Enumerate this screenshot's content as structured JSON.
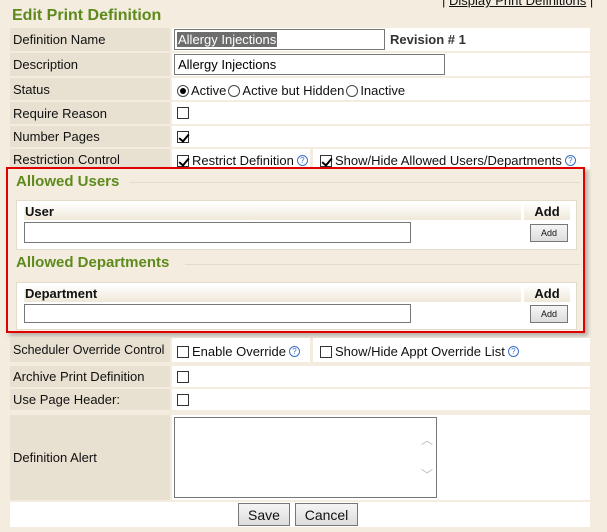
{
  "top_link": "Display Print Definitions",
  "title": "Edit Print Definition",
  "rows": {
    "definition_name": {
      "label": "Definition Name",
      "value": "Allergy Injections",
      "revision": "Revision # 1"
    },
    "description": {
      "label": "Description",
      "value": "Allergy Injections"
    },
    "status": {
      "label": "Status",
      "options": [
        "Active",
        "Active but Hidden",
        "Inactive"
      ],
      "selected": "Active"
    },
    "require_reason": {
      "label": "Require Reason",
      "checked": false
    },
    "number_pages": {
      "label": "Number Pages",
      "checked": true
    },
    "restriction_control": {
      "label": "Restriction Control",
      "restrict": "Restrict Definition",
      "restrict_checked": true,
      "show_hide": "Show/Hide Allowed Users/Departments",
      "show_hide_checked": true
    },
    "scheduler_override": {
      "label": "Scheduler Override Control",
      "enable": "Enable Override",
      "enable_checked": false,
      "show_hide": "Show/Hide Appt Override List",
      "show_hide_checked": false
    },
    "archive": {
      "label": "Archive Print Definition",
      "checked": false
    },
    "page_header": {
      "label": "Use Page Header:",
      "checked": false
    },
    "alert": {
      "label": "Definition Alert",
      "value": ""
    }
  },
  "allowed_users": {
    "title": "Allowed Users",
    "col": "User",
    "add_col": "Add",
    "add_button": "Add"
  },
  "allowed_departments": {
    "title": "Allowed Departments",
    "col": "Department",
    "add_col": "Add",
    "add_button": "Add"
  },
  "buttons": {
    "save": "Save",
    "cancel": "Cancel"
  },
  "colors": {
    "highlight_border": "#e00000",
    "title": "#5e8a1c"
  }
}
